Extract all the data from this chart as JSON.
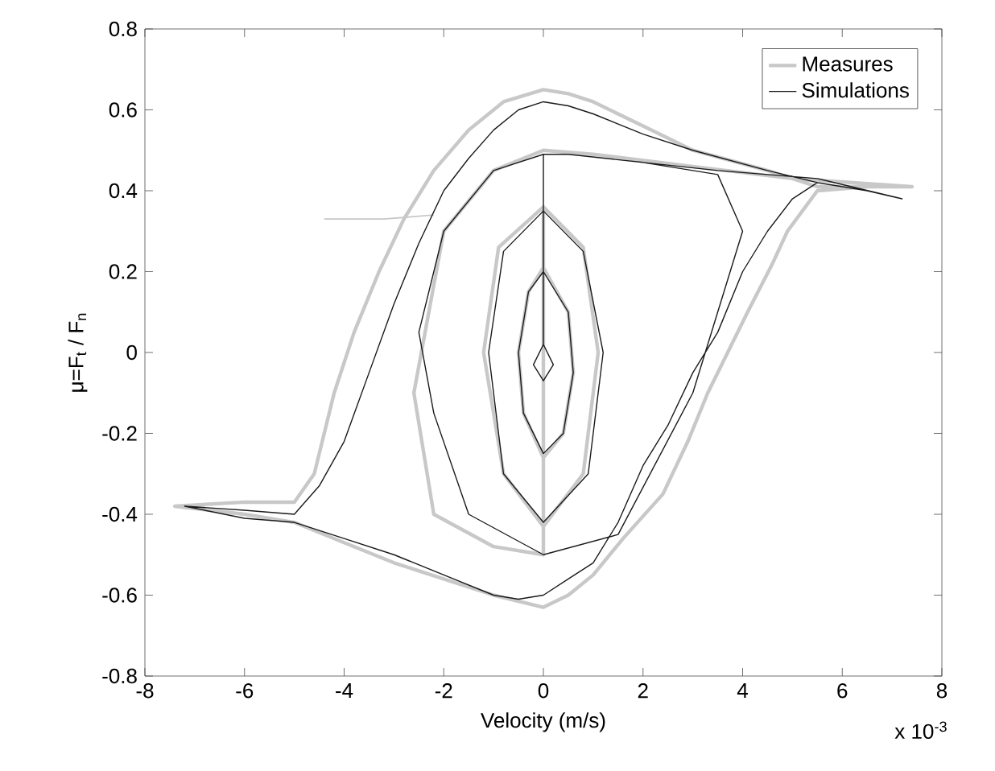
{
  "chart_data": {
    "type": "line",
    "xlabel": "Velocity (m/s)",
    "ylabel": "μ=F$_{t}$ / F$_{n}$",
    "annotations": [
      "x 10$^{-3}$"
    ],
    "xlim": [
      -8,
      8
    ],
    "ylim": [
      -0.8,
      0.8
    ],
    "xticks": [
      -8,
      -6,
      -4,
      -2,
      0,
      2,
      4,
      6,
      8
    ],
    "yticks": [
      -0.8,
      -0.6,
      -0.4,
      -0.2,
      0,
      0.2,
      0.4,
      0.6,
      0.8
    ],
    "grid": false,
    "legend": "top right",
    "series": [
      {
        "name": "Measures",
        "color": "#c8c8c8",
        "x": [
          7.4,
          6.5,
          5.5,
          4.5,
          3,
          2,
          1,
          0.5,
          0,
          -0.8,
          -1.5,
          -2.2,
          -2.8,
          -3.3,
          -3.8,
          -4.2,
          -4.6,
          -5,
          -6,
          -7.4,
          -6,
          -5,
          -4,
          -3,
          -2,
          -1,
          0,
          0.5,
          1,
          1.6,
          2.4,
          2.9,
          3.3,
          3.7,
          4.1,
          4.6,
          4.9,
          5.5,
          6.5,
          7.4,
          5,
          3,
          1,
          0,
          -1,
          -2,
          -2.6,
          -2.2,
          -1,
          0,
          0,
          0.8,
          1.1,
          0.8,
          0,
          -0.8,
          -1.2,
          -0.9,
          0,
          0,
          0.5,
          0.6,
          0.4,
          0,
          -0.4,
          -0.5,
          -0.3,
          0
        ],
        "values": [
          0.41,
          0.41,
          0.41,
          0.45,
          0.5,
          0.56,
          0.62,
          0.64,
          0.65,
          0.62,
          0.55,
          0.45,
          0.33,
          0.2,
          0.05,
          -0.1,
          -0.3,
          -0.37,
          -0.37,
          -0.38,
          -0.4,
          -0.42,
          -0.47,
          -0.52,
          -0.56,
          -0.6,
          -0.63,
          -0.6,
          -0.55,
          -0.46,
          -0.35,
          -0.22,
          -0.1,
          0,
          0.1,
          0.22,
          0.3,
          0.4,
          0.41,
          0.41,
          0.43,
          0.46,
          0.49,
          0.5,
          0.45,
          0.3,
          -0.1,
          -0.4,
          -0.48,
          -0.5,
          0.36,
          0.26,
          0,
          -0.3,
          -0.43,
          -0.3,
          0,
          0.26,
          0.36,
          0.21,
          0.1,
          -0.05,
          -0.2,
          -0.26,
          -0.15,
          0,
          0.15,
          0.21
        ]
      },
      {
        "name": null,
        "color": "#c8c8c8",
        "x": [
          -4.4,
          -3.2,
          -2.2
        ],
        "values": [
          0.33,
          0.33,
          0.34
        ]
      },
      {
        "name": "Simulations",
        "color": "#1a1a1a",
        "x": [
          7.2,
          6.5,
          5.5,
          4.5,
          3,
          2,
          1,
          0.5,
          0,
          -0.5,
          -1,
          -1.5,
          -2,
          -2.5,
          -3,
          -3.5,
          -4,
          -4.5,
          -5,
          -6,
          -7.2,
          -6,
          -5,
          -4,
          -3,
          -2,
          -1,
          -0.5,
          0,
          0.5,
          1,
          1.5,
          2,
          2.5,
          3,
          3.5,
          4,
          4.5,
          5,
          5.5,
          6.5,
          7.2,
          5.5,
          3.5,
          2,
          0.5,
          0,
          -1,
          -2,
          -2.5,
          -2.2,
          -1.5,
          0,
          1.5,
          3,
          4,
          3.5,
          2,
          0.5,
          0,
          0,
          0.8,
          1.2,
          0.9,
          0,
          -0.8,
          -1.1,
          -0.8,
          0,
          0,
          0.5,
          0.6,
          0.4,
          0,
          -0.4,
          -0.5,
          -0.3,
          0,
          0,
          0.2,
          0,
          -0.2,
          0
        ],
        "values": [
          0.38,
          0.4,
          0.42,
          0.45,
          0.5,
          0.54,
          0.59,
          0.61,
          0.62,
          0.6,
          0.55,
          0.48,
          0.4,
          0.27,
          0.12,
          -0.05,
          -0.22,
          -0.33,
          -0.4,
          -0.39,
          -0.38,
          -0.41,
          -0.42,
          -0.46,
          -0.5,
          -0.55,
          -0.6,
          -0.61,
          -0.6,
          -0.56,
          -0.52,
          -0.42,
          -0.28,
          -0.18,
          -0.05,
          0.05,
          0.2,
          0.3,
          0.38,
          0.42,
          0.4,
          0.38,
          0.43,
          0.45,
          0.47,
          0.49,
          0.49,
          0.45,
          0.3,
          0.05,
          -0.15,
          -0.4,
          -0.5,
          -0.45,
          -0.1,
          0.3,
          0.44,
          0.47,
          0.49,
          0.49,
          0.35,
          0.25,
          0,
          -0.3,
          -0.42,
          -0.3,
          0,
          0.25,
          0.35,
          0.2,
          0.1,
          -0.05,
          -0.2,
          -0.25,
          -0.15,
          0,
          0.15,
          0.2,
          0.02,
          -0.03,
          -0.07,
          -0.03,
          0.02
        ]
      }
    ]
  }
}
